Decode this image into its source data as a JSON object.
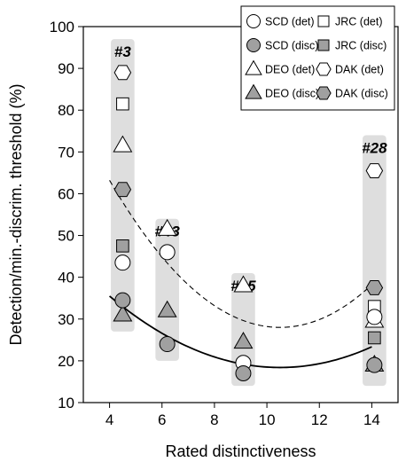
{
  "chart_data": {
    "type": "scatter",
    "xlabel": "Rated distinctiveness",
    "ylabel": "Detection/min.-discrim.  threshold (%)",
    "xlim": [
      3,
      15
    ],
    "ylim": [
      10,
      100
    ],
    "xticks": [
      4,
      6,
      8,
      10,
      12,
      14
    ],
    "yticks": [
      10,
      20,
      30,
      40,
      50,
      60,
      70,
      80,
      90,
      100
    ],
    "legend_position": "top-right",
    "series": [
      {
        "name": "SCD (det)",
        "marker": "circle",
        "fill": "open",
        "points": [
          {
            "x": 4.5,
            "y": 43.5
          },
          {
            "x": 6.2,
            "y": 46
          },
          {
            "x": 9.1,
            "y": 19.5
          },
          {
            "x": 14.1,
            "y": 30.5
          }
        ]
      },
      {
        "name": "SCD (disc)",
        "marker": "circle",
        "fill": "filled",
        "points": [
          {
            "x": 4.5,
            "y": 34.5
          },
          {
            "x": 6.2,
            "y": 24
          },
          {
            "x": 9.1,
            "y": 17
          },
          {
            "x": 14.1,
            "y": 19
          }
        ]
      },
      {
        "name": "JRC (det)",
        "marker": "square",
        "fill": "open",
        "points": [
          {
            "x": 4.5,
            "y": 81.5
          },
          {
            "x": 14.1,
            "y": 33
          }
        ]
      },
      {
        "name": "JRC (disc)",
        "marker": "square",
        "fill": "filled",
        "points": [
          {
            "x": 4.5,
            "y": 47.5
          },
          {
            "x": 14.1,
            "y": 25.5
          }
        ]
      },
      {
        "name": "DEO (det)",
        "marker": "triangle",
        "fill": "open",
        "points": [
          {
            "x": 4.5,
            "y": 71.5
          },
          {
            "x": 6.2,
            "y": 51.5
          },
          {
            "x": 9.1,
            "y": 38
          },
          {
            "x": 14.1,
            "y": 29.5
          }
        ]
      },
      {
        "name": "DEO (disc)",
        "marker": "triangle",
        "fill": "filled",
        "points": [
          {
            "x": 4.5,
            "y": 31
          },
          {
            "x": 6.2,
            "y": 32
          },
          {
            "x": 9.1,
            "y": 24.5
          },
          {
            "x": 14.1,
            "y": 19
          }
        ]
      },
      {
        "name": "DAK (det)",
        "marker": "hexagon",
        "fill": "open",
        "points": [
          {
            "x": 4.5,
            "y": 89
          },
          {
            "x": 14.1,
            "y": 65.5
          }
        ]
      },
      {
        "name": "DAK (disc)",
        "marker": "hexagon",
        "fill": "filled",
        "points": [
          {
            "x": 4.5,
            "y": 61
          },
          {
            "x": 14.1,
            "y": 37.5
          }
        ]
      }
    ],
    "groups": [
      {
        "label": "#3",
        "x_range": [
          4.05,
          4.95
        ],
        "y_range": [
          27,
          97
        ]
      },
      {
        "label": "#43",
        "x_range": [
          5.75,
          6.65
        ],
        "y_range": [
          20,
          54
        ]
      },
      {
        "label": "#25",
        "x_range": [
          8.65,
          9.55
        ],
        "y_range": [
          14,
          41
        ]
      },
      {
        "label": "#28",
        "x_range": [
          13.65,
          14.55
        ],
        "y_range": [
          14,
          74
        ]
      }
    ],
    "curves": [
      {
        "style": "solid",
        "x_range": [
          4,
          14
        ],
        "coefficients": {
          "a": 0.4045,
          "h": 10.5,
          "k": 18.4
        }
      },
      {
        "style": "dashed",
        "x_range": [
          4,
          14
        ],
        "coefficients": {
          "a": 0.8333,
          "h": 10.5,
          "k": 28.0
        }
      }
    ],
    "colors": {
      "filled_marker": "#a0a0a0",
      "group_box": "#dedede"
    }
  }
}
